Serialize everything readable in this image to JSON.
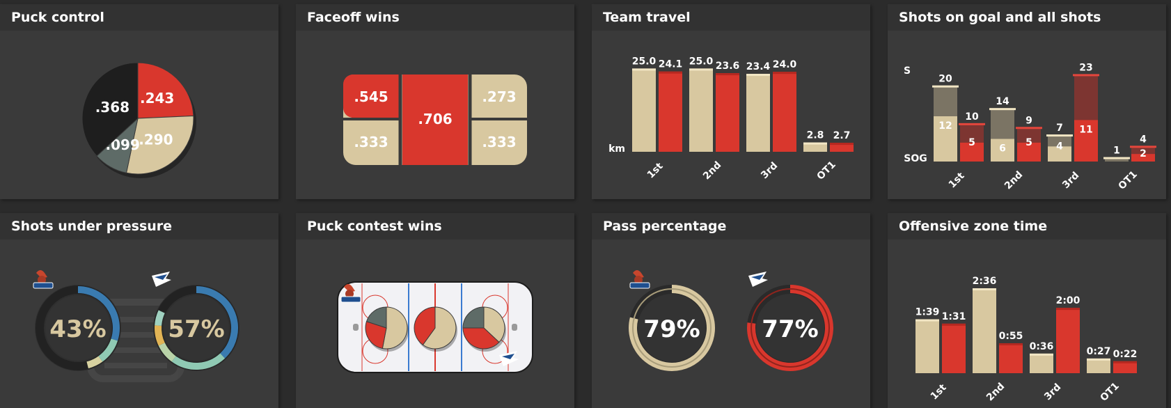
{
  "panels": {
    "puck_control": "Puck control",
    "faceoff_wins": "Faceoff wins",
    "team_travel": "Team travel",
    "shots": "Shots on goal and all shots",
    "shots_pressure": "Shots under pressure",
    "puck_contest": "Puck contest wins",
    "pass_pct": "Pass percentage",
    "oz_time": "Offensive zone time"
  },
  "colors": {
    "home": "#d8c8a0",
    "away": "#d9372d",
    "dark": "#1e1e1e",
    "gray": "#5e6b67",
    "panel": "#3a3a3a",
    "header": "#323232",
    "blue": "#3a7bb0"
  },
  "icons": [
    "home-team-logo",
    "away-team-logo",
    "hockey-rink",
    "net-icon"
  ],
  "chart_data": [
    {
      "id": "puck_control",
      "type": "pie",
      "slices": [
        {
          "label": ".243",
          "value": 0.243,
          "color": "#d9372d"
        },
        {
          "label": ".290",
          "value": 0.29,
          "color": "#d8c8a0"
        },
        {
          "label": ".099",
          "value": 0.099,
          "color": "#5e6b67"
        },
        {
          "label": ".368",
          "value": 0.368,
          "color": "#1e1e1e"
        }
      ]
    },
    {
      "id": "faceoff_wins",
      "type": "table",
      "cells": {
        "left_top": ".545",
        "left_bottom": ".333",
        "center": ".706",
        "right_top": ".273",
        "right_bottom": ".333"
      }
    },
    {
      "id": "team_travel",
      "type": "bar",
      "categories": [
        "1st",
        "2nd",
        "3rd",
        "OT1"
      ],
      "unit_label": "km",
      "ylim": [
        0,
        25.5
      ],
      "series": [
        {
          "values": [
            25.0,
            25.0,
            23.4,
            2.8
          ],
          "labels": [
            "25.0",
            "25.0",
            "23.4",
            "2.8"
          ]
        },
        {
          "values": [
            24.1,
            23.6,
            24.0,
            2.7
          ],
          "labels": [
            "24.1",
            "23.6",
            "24.0",
            "2.7"
          ]
        }
      ]
    },
    {
      "id": "shots",
      "type": "bar",
      "categories": [
        "1st",
        "2nd",
        "3rd",
        "OT1"
      ],
      "axis_labels": {
        "shots": "S",
        "sog": "SOG"
      },
      "ylim": [
        0,
        24
      ],
      "series": [
        {
          "shots": [
            20,
            14,
            7,
            1
          ],
          "sog": [
            12,
            6,
            4,
            0
          ]
        },
        {
          "shots": [
            10,
            9,
            23,
            4
          ],
          "sog": [
            5,
            5,
            11,
            2
          ]
        }
      ]
    },
    {
      "id": "shots_pressure",
      "type": "pie",
      "teams": [
        {
          "value": "43%",
          "percent": 43
        },
        {
          "value": "57%",
          "percent": 57
        }
      ]
    },
    {
      "id": "puck_contest",
      "type": "pie",
      "zones": [
        {
          "red": 0.27,
          "gray": 0.2,
          "tan": 0.53
        },
        {
          "red": 0.4,
          "gray": 0.0,
          "tan": 0.6
        },
        {
          "red": 0.38,
          "gray": 0.25,
          "tan": 0.37
        }
      ]
    },
    {
      "id": "pass_pct",
      "type": "pie",
      "teams": [
        {
          "value": "79%",
          "percent": 79
        },
        {
          "value": "77%",
          "percent": 77
        }
      ]
    },
    {
      "id": "oz_time",
      "type": "bar",
      "categories": [
        "1st",
        "2nd",
        "3rd",
        "OT1"
      ],
      "ylim": [
        0,
        156
      ],
      "series": [
        {
          "values": [
            99,
            156,
            36,
            27
          ],
          "labels": [
            "1:39",
            "2:36",
            "0:36",
            "0:27"
          ]
        },
        {
          "values": [
            91,
            55,
            120,
            22
          ],
          "labels": [
            "1:31",
            "0:55",
            "2:00",
            "0:22"
          ]
        }
      ]
    }
  ]
}
